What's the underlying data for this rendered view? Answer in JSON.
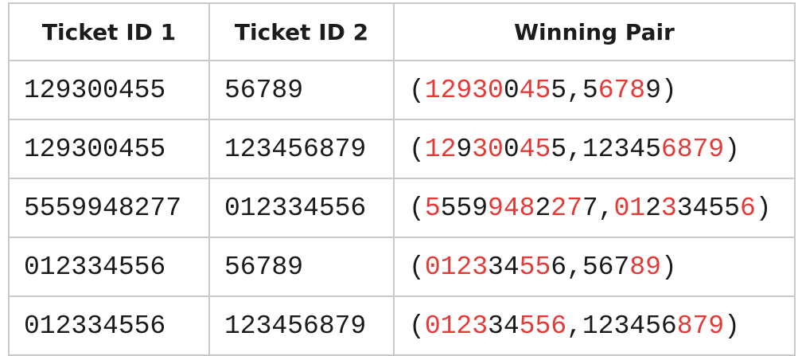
{
  "columns": [
    "Ticket ID 1",
    "Ticket ID 2",
    "Winning Pair"
  ],
  "highlight_color": "#e53935",
  "rows": [
    {
      "ticket1": "129300455",
      "ticket2": "56789",
      "pair": [
        {
          "t": "(",
          "hl": false
        },
        {
          "t": "12930",
          "hl": true
        },
        {
          "t": "0",
          "hl": false
        },
        {
          "t": "45",
          "hl": true
        },
        {
          "t": "5,5",
          "hl": false
        },
        {
          "t": "678",
          "hl": true
        },
        {
          "t": "9)",
          "hl": false
        }
      ]
    },
    {
      "ticket1": "129300455",
      "ticket2": "123456879",
      "pair": [
        {
          "t": "(",
          "hl": false
        },
        {
          "t": "12",
          "hl": true
        },
        {
          "t": "9",
          "hl": false
        },
        {
          "t": "30",
          "hl": true
        },
        {
          "t": "0",
          "hl": false
        },
        {
          "t": "45",
          "hl": true
        },
        {
          "t": "5,12345",
          "hl": false
        },
        {
          "t": "6879",
          "hl": true
        },
        {
          "t": ")",
          "hl": false
        }
      ]
    },
    {
      "ticket1": "5559948277",
      "ticket2": "012334556",
      "pair": [
        {
          "t": "(",
          "hl": false
        },
        {
          "t": "5",
          "hl": true
        },
        {
          "t": "559",
          "hl": false
        },
        {
          "t": "948",
          "hl": true
        },
        {
          "t": "2",
          "hl": false
        },
        {
          "t": "27",
          "hl": true
        },
        {
          "t": "7,",
          "hl": false
        },
        {
          "t": "01",
          "hl": true
        },
        {
          "t": "2",
          "hl": false
        },
        {
          "t": "3",
          "hl": true
        },
        {
          "t": "3455",
          "hl": false
        },
        {
          "t": "6",
          "hl": true
        },
        {
          "t": ")",
          "hl": false
        }
      ]
    },
    {
      "ticket1": "012334556",
      "ticket2": "56789",
      "pair": [
        {
          "t": "(",
          "hl": false
        },
        {
          "t": "0123",
          "hl": true
        },
        {
          "t": "34",
          "hl": false
        },
        {
          "t": "55",
          "hl": true
        },
        {
          "t": "6",
          "hl": false
        },
        {
          "t": ",567",
          "hl": false
        },
        {
          "t": "89",
          "hl": true
        },
        {
          "t": ")",
          "hl": false
        }
      ]
    },
    {
      "ticket1": "012334556",
      "ticket2": "123456879",
      "pair": [
        {
          "t": "(",
          "hl": false
        },
        {
          "t": "0123",
          "hl": true
        },
        {
          "t": "34",
          "hl": false
        },
        {
          "t": "556",
          "hl": true
        },
        {
          "t": ",123456",
          "hl": false
        },
        {
          "t": "879",
          "hl": true
        },
        {
          "t": ")",
          "hl": false
        }
      ]
    }
  ]
}
